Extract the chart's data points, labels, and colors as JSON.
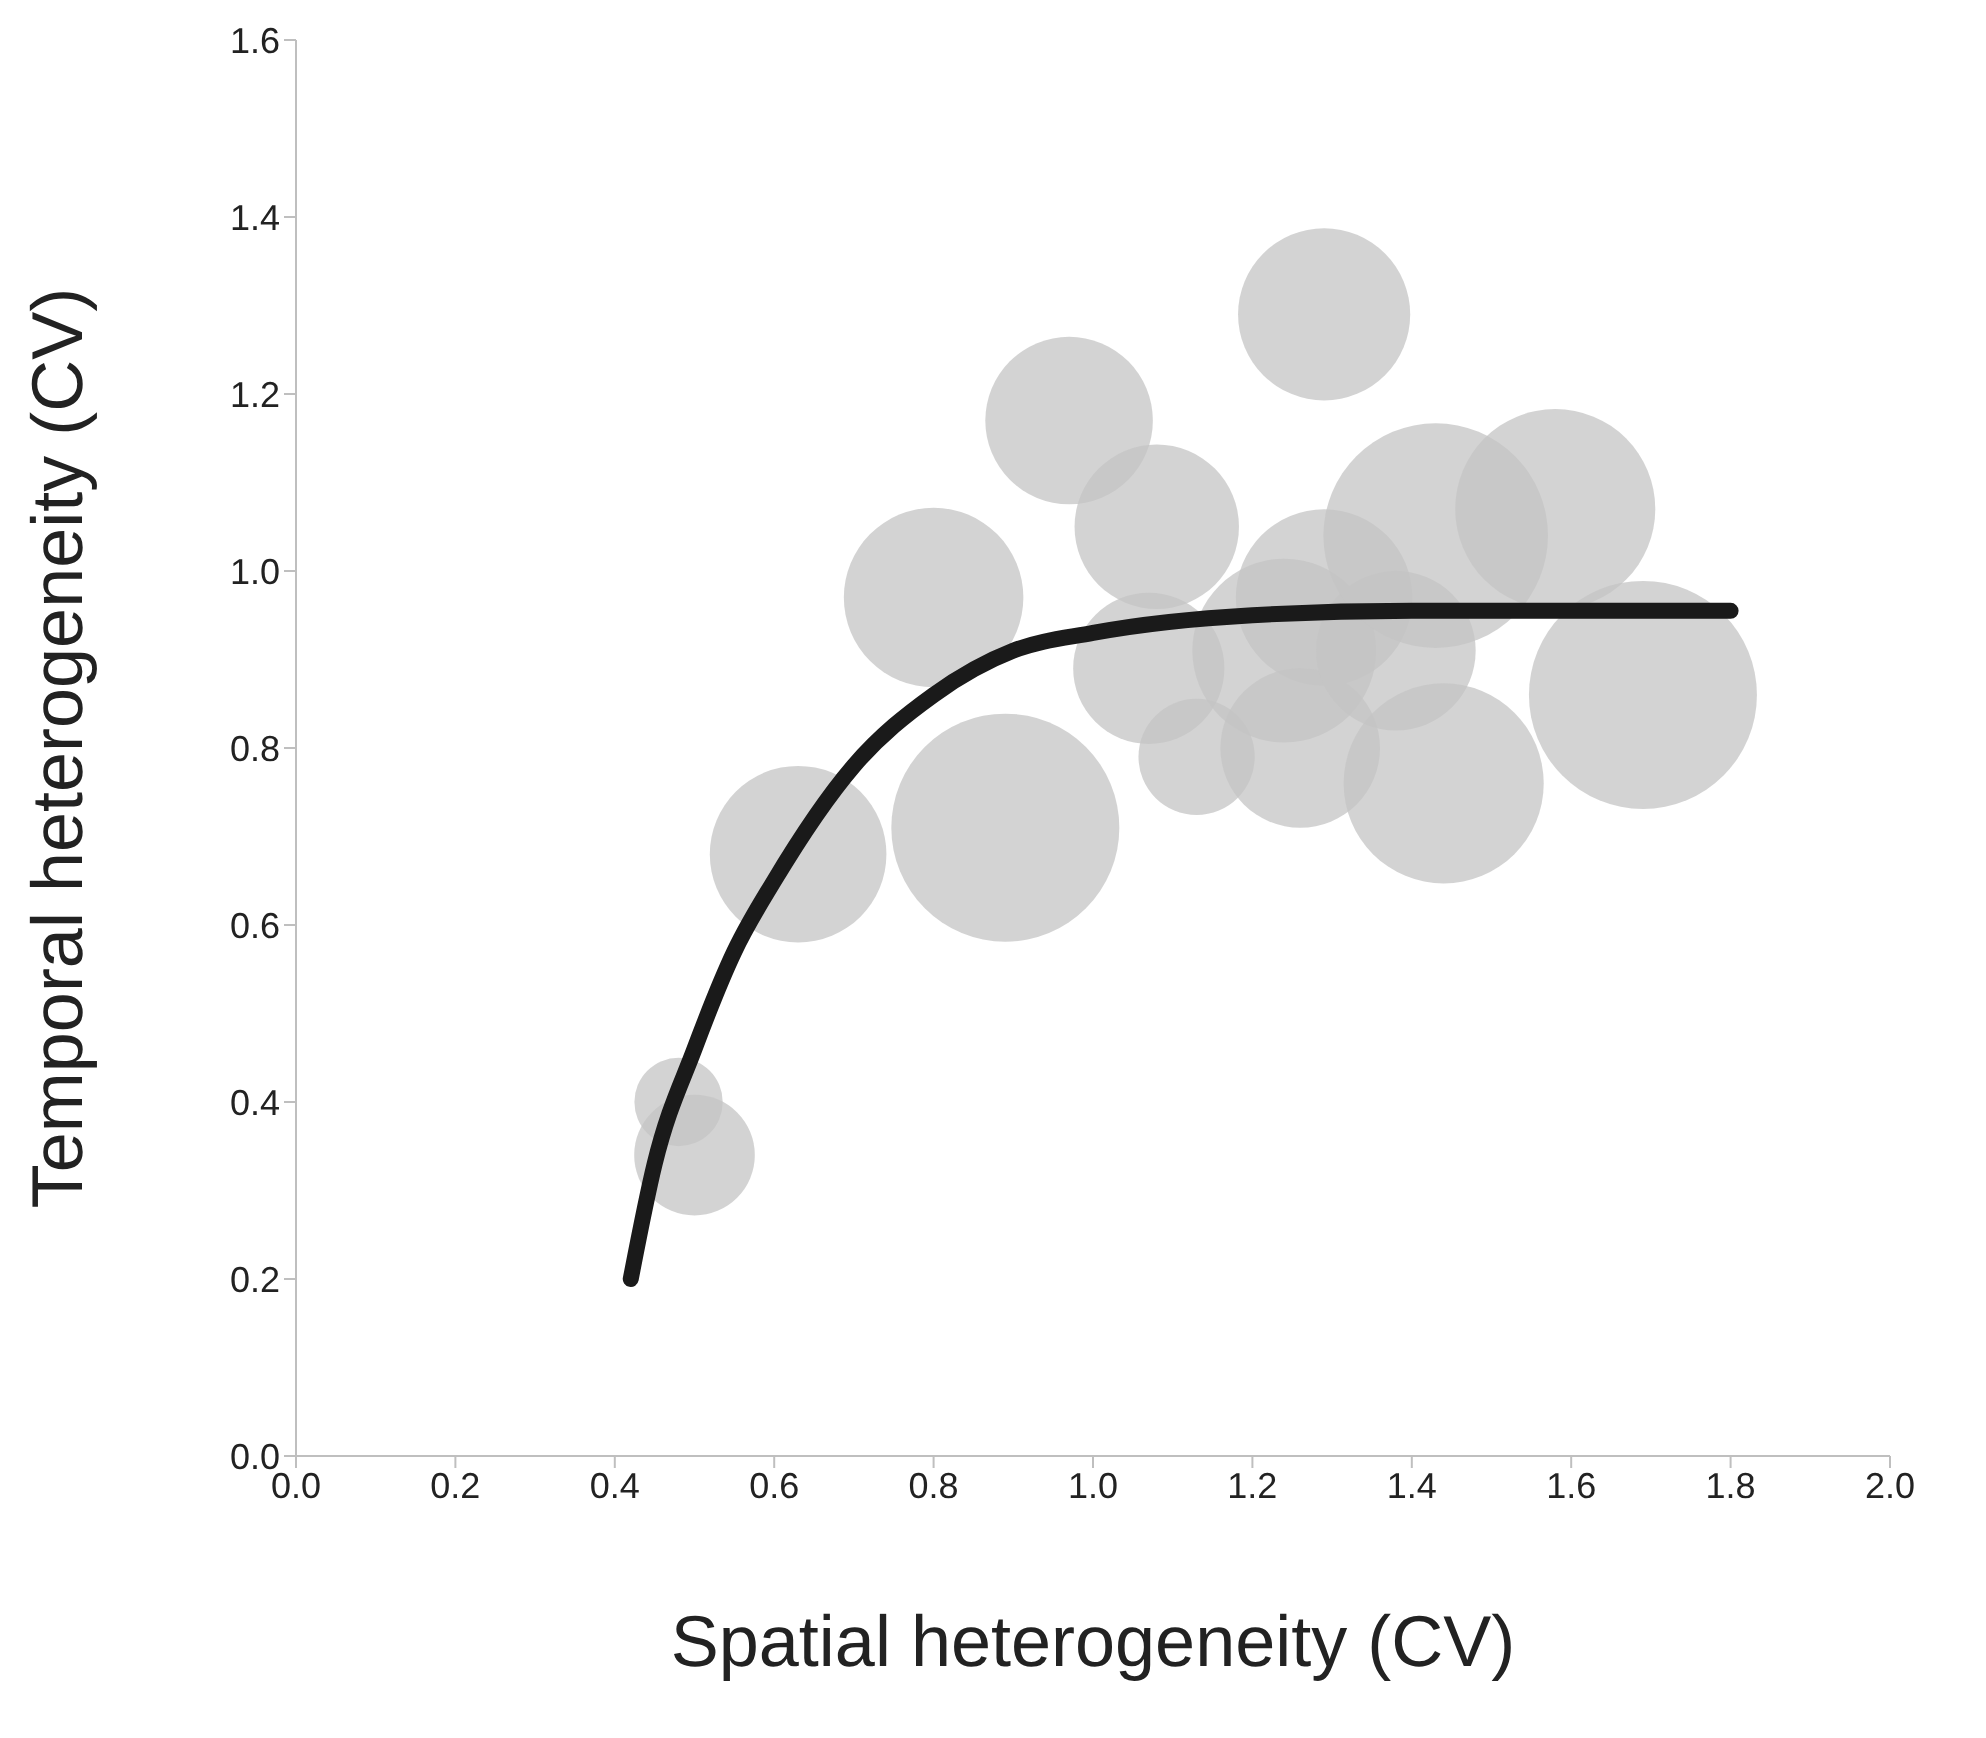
{
  "chart_data": {
    "type": "bubble",
    "xlabel": "Spatial heterogeneity (CV)",
    "ylabel": "Temporal heterogeneity (CV)",
    "xlim": [
      0,
      2
    ],
    "xticks": [
      {
        "value": 0,
        "label": "0.0"
      },
      {
        "value": 0.2,
        "label": "0.2"
      },
      {
        "value": 0.4,
        "label": "0.4"
      },
      {
        "value": 0.6,
        "label": "0.6"
      },
      {
        "value": 0.8,
        "label": "0.8"
      },
      {
        "value": 1,
        "label": "1.0"
      },
      {
        "value": 1.2,
        "label": "1.2"
      },
      {
        "value": 1.4,
        "label": "1.4"
      },
      {
        "value": 1.6,
        "label": "1.6"
      },
      {
        "value": 1.8,
        "label": "1.8"
      },
      {
        "value": 2,
        "label": "2.0"
      }
    ],
    "ylim": [
      0,
      1.6
    ],
    "yticks": [
      {
        "value": 0,
        "label": "0.0"
      },
      {
        "value": 0.2,
        "label": "0.2"
      },
      {
        "value": 0.4,
        "label": "0.4"
      },
      {
        "value": 0.6,
        "label": "0.6"
      },
      {
        "value": 0.8,
        "label": "0.8"
      },
      {
        "value": 1,
        "label": "1.0"
      },
      {
        "value": 1.2,
        "label": "1.2"
      },
      {
        "value": 1.4,
        "label": "1.4"
      },
      {
        "value": 1.6,
        "label": "1.6"
      }
    ],
    "grid": false,
    "series": [
      {
        "color": "#c4c4c4",
        "x": [
          0.48,
          0.5,
          0.63,
          0.8,
          0.89,
          0.97,
          1.08,
          1.07,
          1.13,
          1.29,
          1.29,
          1.24,
          1.26,
          1.38,
          1.43,
          1.58,
          1.44,
          1.69
        ],
        "values": [
          0.4,
          0.34,
          0.68,
          0.97,
          0.71,
          1.17,
          1.05,
          0.89,
          0.79,
          1.29,
          0.97,
          0.91,
          0.8,
          0.91,
          1.04,
          1.07,
          0.76,
          0.86
        ],
        "sizes": [
          0.15,
          0.28,
          0.6,
          0.62,
          1,
          0.54,
          0.52,
          0.44,
          0.26,
          0.57,
          0.6,
          0.65,
          0.49,
          0.49,
          0.97,
          0.77,
          0.77,
          1
        ]
      },
      {
        "type": "line",
        "color": "#1a1a1a",
        "x": [
          0.42,
          0.45,
          0.5,
          0.55,
          0.6,
          0.7,
          0.8,
          0.9,
          1.0,
          1.2,
          1.4,
          1.6,
          1.8
        ],
        "values": [
          0.2,
          0.33,
          0.46,
          0.57,
          0.65,
          0.78,
          0.86,
          0.91,
          0.93,
          0.95,
          0.955,
          0.955,
          0.955
        ]
      }
    ]
  }
}
